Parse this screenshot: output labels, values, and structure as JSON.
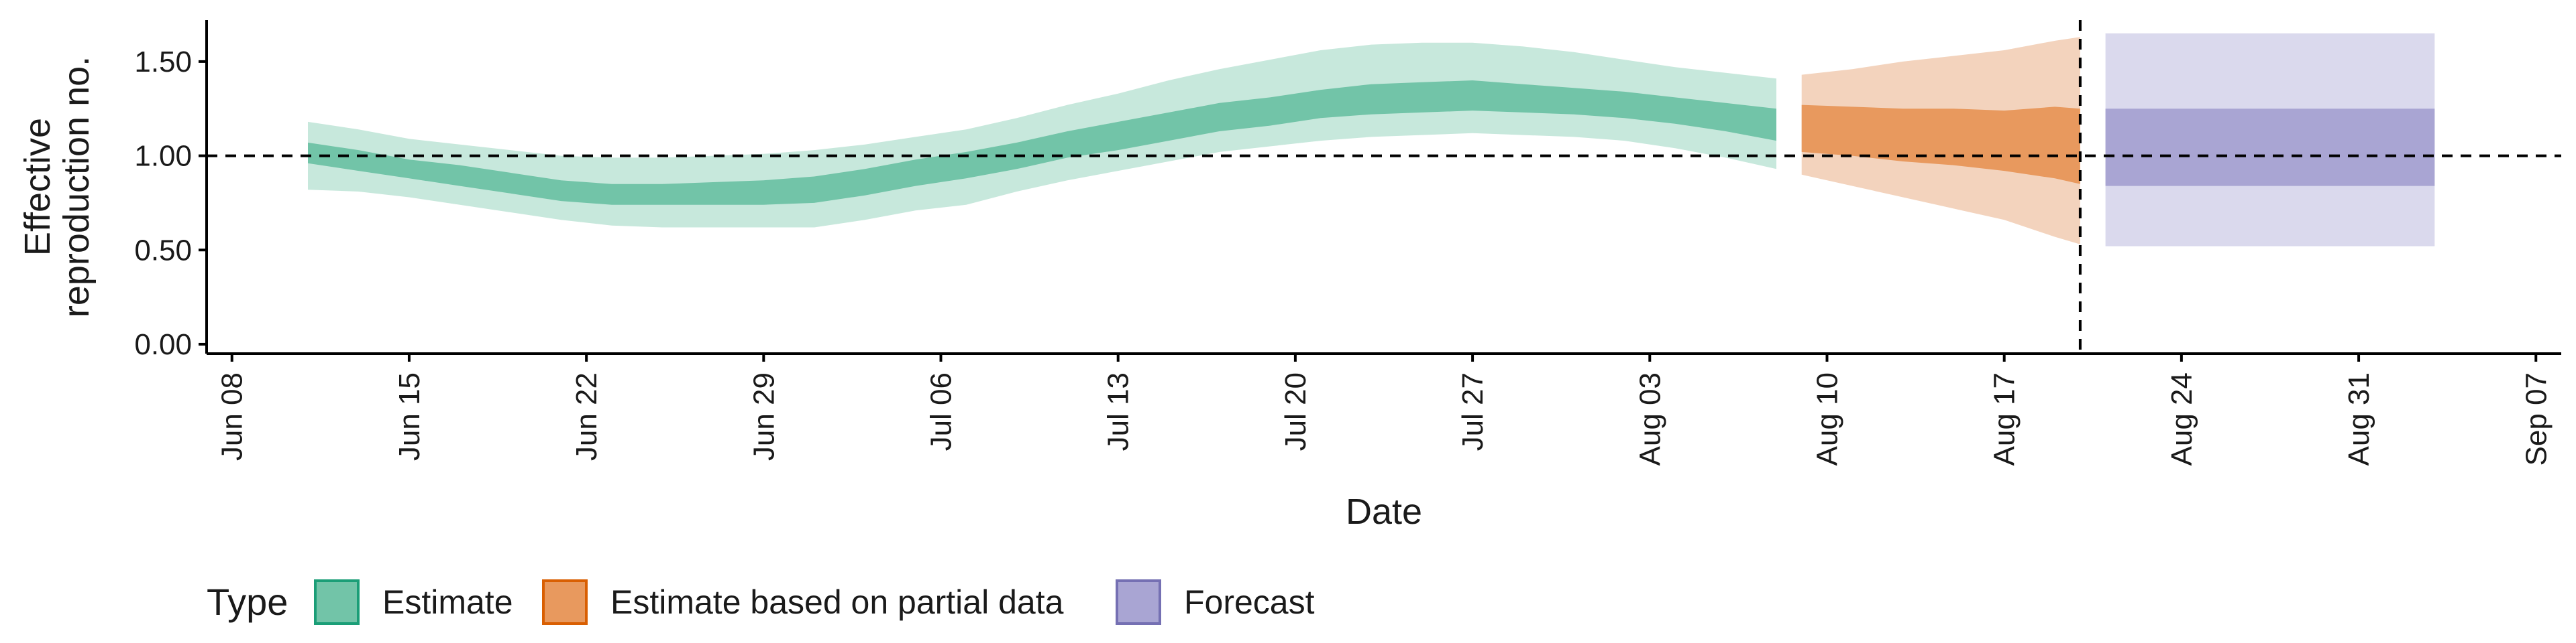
{
  "chart_data": {
    "type": "area",
    "xlabel": "Date",
    "ylabel_lines": [
      "Effective",
      "reproduction no."
    ],
    "x_range": [
      "2020-06-07",
      "2020-09-08"
    ],
    "ylim": [
      -0.05,
      1.72
    ],
    "x_ticks": [
      {
        "date": "2020-06-08",
        "label": "Jun 08"
      },
      {
        "date": "2020-06-15",
        "label": "Jun 15"
      },
      {
        "date": "2020-06-22",
        "label": "Jun 22"
      },
      {
        "date": "2020-06-29",
        "label": "Jun 29"
      },
      {
        "date": "2020-07-06",
        "label": "Jul 06"
      },
      {
        "date": "2020-07-13",
        "label": "Jul 13"
      },
      {
        "date": "2020-07-20",
        "label": "Jul 20"
      },
      {
        "date": "2020-07-27",
        "label": "Jul 27"
      },
      {
        "date": "2020-08-03",
        "label": "Aug 03"
      },
      {
        "date": "2020-08-10",
        "label": "Aug 10"
      },
      {
        "date": "2020-08-17",
        "label": "Aug 17"
      },
      {
        "date": "2020-08-24",
        "label": "Aug 24"
      },
      {
        "date": "2020-08-31",
        "label": "Aug 31"
      },
      {
        "date": "2020-09-07",
        "label": "Sep 07"
      }
    ],
    "y_ticks": [
      {
        "value": 0.0,
        "label": "0.00"
      },
      {
        "value": 0.5,
        "label": "0.50"
      },
      {
        "value": 1.0,
        "label": "1.00"
      },
      {
        "value": 1.5,
        "label": "1.50"
      }
    ],
    "reference_hline": 1.0,
    "reference_vline": "2020-08-20",
    "legend": {
      "title": "Type",
      "placement": "bottom",
      "entries": [
        {
          "label": "Estimate",
          "fill": "#72c4a8",
          "border": "#1b9e77"
        },
        {
          "label": "Estimate based on partial data",
          "fill": "#e8995e",
          "border": "#d95f02"
        },
        {
          "label": "Forecast",
          "fill": "#a9a5d3",
          "border": "#7570b3"
        }
      ]
    },
    "series": [
      {
        "type": "Estimate",
        "outer_color": "#c7e8dc",
        "inner_color": "#72c4a8",
        "dates": [
          "2020-06-11",
          "2020-06-13",
          "2020-06-15",
          "2020-06-17",
          "2020-06-19",
          "2020-06-21",
          "2020-06-23",
          "2020-06-25",
          "2020-06-27",
          "2020-06-29",
          "2020-07-01",
          "2020-07-03",
          "2020-07-05",
          "2020-07-07",
          "2020-07-09",
          "2020-07-11",
          "2020-07-13",
          "2020-07-15",
          "2020-07-17",
          "2020-07-19",
          "2020-07-21",
          "2020-07-23",
          "2020-07-25",
          "2020-07-27",
          "2020-07-29",
          "2020-07-31",
          "2020-08-02",
          "2020-08-04",
          "2020-08-06",
          "2020-08-08"
        ],
        "outer_lower": [
          0.82,
          0.81,
          0.78,
          0.74,
          0.7,
          0.66,
          0.63,
          0.62,
          0.62,
          0.62,
          0.62,
          0.66,
          0.71,
          0.74,
          0.81,
          0.87,
          0.92,
          0.97,
          1.02,
          1.05,
          1.08,
          1.1,
          1.11,
          1.12,
          1.11,
          1.1,
          1.08,
          1.04,
          0.99,
          0.93
        ],
        "inner_lower": [
          0.96,
          0.92,
          0.88,
          0.84,
          0.8,
          0.76,
          0.74,
          0.74,
          0.74,
          0.74,
          0.75,
          0.79,
          0.84,
          0.88,
          0.93,
          0.99,
          1.03,
          1.08,
          1.13,
          1.16,
          1.2,
          1.22,
          1.23,
          1.24,
          1.23,
          1.22,
          1.2,
          1.17,
          1.13,
          1.08
        ],
        "inner_upper": [
          1.07,
          1.03,
          0.98,
          0.95,
          0.91,
          0.87,
          0.85,
          0.85,
          0.86,
          0.87,
          0.89,
          0.93,
          0.98,
          1.02,
          1.07,
          1.13,
          1.18,
          1.23,
          1.28,
          1.31,
          1.35,
          1.38,
          1.39,
          1.4,
          1.38,
          1.36,
          1.34,
          1.31,
          1.28,
          1.25
        ],
        "outer_upper": [
          1.18,
          1.14,
          1.09,
          1.06,
          1.03,
          1.0,
          0.99,
          0.99,
          1.0,
          1.01,
          1.03,
          1.06,
          1.1,
          1.14,
          1.2,
          1.27,
          1.33,
          1.4,
          1.46,
          1.51,
          1.56,
          1.59,
          1.6,
          1.6,
          1.58,
          1.55,
          1.51,
          1.47,
          1.44,
          1.41
        ]
      },
      {
        "type": "Estimate based on partial data",
        "outer_color": "#f3d3bd",
        "inner_color": "#e8995e",
        "dates": [
          "2020-08-09",
          "2020-08-11",
          "2020-08-13",
          "2020-08-15",
          "2020-08-17",
          "2020-08-19",
          "2020-08-20"
        ],
        "outer_lower": [
          0.9,
          0.84,
          0.78,
          0.72,
          0.66,
          0.57,
          0.53
        ],
        "inner_lower": [
          1.02,
          1.0,
          0.97,
          0.95,
          0.92,
          0.88,
          0.85
        ],
        "inner_upper": [
          1.27,
          1.26,
          1.25,
          1.25,
          1.24,
          1.26,
          1.25
        ],
        "outer_upper": [
          1.43,
          1.46,
          1.5,
          1.53,
          1.56,
          1.61,
          1.63
        ]
      },
      {
        "type": "Forecast",
        "outer_color": "#dad9ed",
        "inner_color": "#a9a5d3",
        "dates": [
          "2020-08-21",
          "2020-09-03"
        ],
        "outer_lower": [
          0.52,
          0.52
        ],
        "inner_lower": [
          0.84,
          0.84
        ],
        "inner_upper": [
          1.25,
          1.25
        ],
        "outer_upper": [
          1.65,
          1.65
        ]
      }
    ]
  }
}
